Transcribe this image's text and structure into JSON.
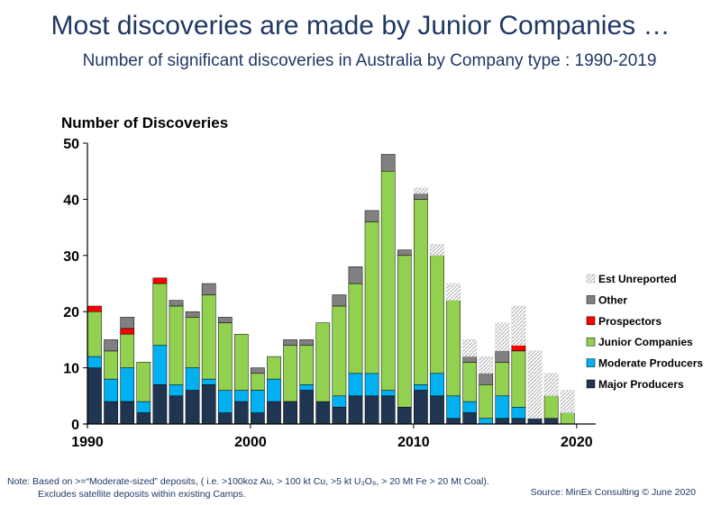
{
  "header": {
    "title": "Most discoveries are made by Junior Companies …",
    "subtitle": "Number of significant discoveries in Australia by Company type : 1990-2019"
  },
  "footer": {
    "note_line1": "Note: Based on >=“Moderate-sized” deposits, ( i.e. >100koz Au, > 100 kt Cu, >5 kt U₃O₈, > 20 Mt Fe > 20 Mt Coal).",
    "note_line2": "Excludes satellite deposits within existing Camps.",
    "source": "Source: MinEx Consulting  © June 2020"
  },
  "chart_data": {
    "type": "bar",
    "stacked": true,
    "title": "",
    "ylabel": "Number of Discoveries",
    "xlabel": "",
    "ylim": [
      0,
      50
    ],
    "yticks": [
      0,
      10,
      20,
      30,
      40,
      50
    ],
    "xticks": [
      1990,
      2000,
      2010,
      2020
    ],
    "categories": [
      1990,
      1991,
      1992,
      1993,
      1994,
      1995,
      1996,
      1997,
      1998,
      1999,
      2000,
      2001,
      2002,
      2003,
      2004,
      2005,
      2006,
      2007,
      2008,
      2009,
      2010,
      2011,
      2012,
      2013,
      2014,
      2015,
      2016,
      2017,
      2018,
      2019
    ],
    "series": [
      {
        "name": "Major Producers",
        "color": "#1f3552",
        "values": [
          10,
          4,
          4,
          2,
          7,
          5,
          6,
          7,
          2,
          4,
          2,
          4,
          4,
          6,
          4,
          3,
          5,
          5,
          5,
          3,
          6,
          5,
          1,
          2,
          0,
          1,
          1,
          1,
          1,
          0
        ]
      },
      {
        "name": "Moderate Producers",
        "color": "#00b0f0",
        "values": [
          2,
          4,
          6,
          2,
          7,
          2,
          4,
          1,
          4,
          2,
          4,
          4,
          0,
          1,
          0,
          2,
          4,
          4,
          1,
          0,
          1,
          4,
          4,
          2,
          1,
          4,
          2,
          0,
          0,
          0
        ]
      },
      {
        "name": "Junior Companies",
        "color": "#92d050",
        "values": [
          8,
          5,
          6,
          7,
          11,
          14,
          9,
          15,
          12,
          10,
          3,
          4,
          10,
          7,
          14,
          16,
          16,
          27,
          39,
          27,
          33,
          21,
          17,
          7,
          6,
          6,
          10,
          0,
          4,
          2
        ]
      },
      {
        "name": "Prospectors",
        "color": "#ff0000",
        "values": [
          1,
          0,
          1,
          0,
          1,
          0,
          0,
          0,
          0,
          0,
          0,
          0,
          0,
          0,
          0,
          0,
          0,
          0,
          0,
          0,
          0,
          0,
          0,
          0,
          0,
          0,
          1,
          0,
          0,
          0
        ]
      },
      {
        "name": "Other",
        "color": "#808080",
        "values": [
          0,
          2,
          2,
          0,
          0,
          1,
          1,
          2,
          1,
          0,
          1,
          0,
          1,
          1,
          0,
          2,
          3,
          2,
          3,
          1,
          1,
          0,
          0,
          1,
          2,
          2,
          0,
          0,
          0,
          0
        ]
      },
      {
        "name": "Est Unreported",
        "color": "hatch",
        "values": [
          0,
          0,
          0,
          0,
          0,
          0,
          0,
          0,
          0,
          0,
          0,
          0,
          0,
          0,
          0,
          0,
          0,
          0,
          0,
          0,
          1,
          2,
          3,
          3,
          3,
          5,
          7,
          12,
          4,
          4
        ]
      }
    ],
    "legend_position": "right",
    "legend_order": [
      "Est Unreported",
      "Other",
      "Prospectors",
      "Junior Companies",
      "Moderate Producers",
      "Major Producers"
    ]
  }
}
